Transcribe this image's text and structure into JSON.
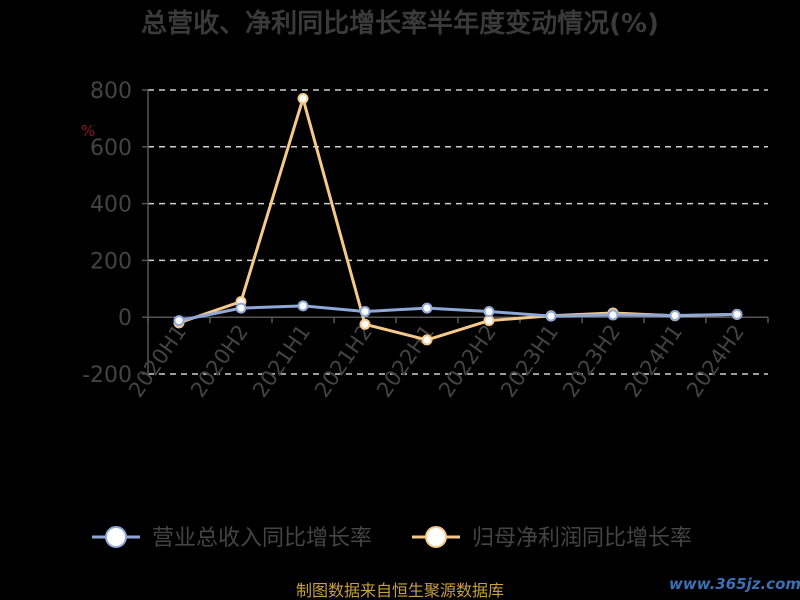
{
  "chart_data": {
    "type": "line",
    "title": "总营收、净利同比增长率半年度变动情况(%)",
    "ylabel": "%",
    "ylim": [
      -200,
      800
    ],
    "yticks": [
      800,
      600,
      400,
      200,
      0,
      -200
    ],
    "categories": [
      "2020H1",
      "2020H2",
      "2021H1",
      "2021H2",
      "2022H1",
      "2022H2",
      "2023H1",
      "2023H2",
      "2024H1",
      "2024H2"
    ],
    "series": [
      {
        "name": "营业总收入同比增长率",
        "color": "#8fa8d8",
        "values": [
          -12,
          32,
          40,
          20,
          32,
          20,
          4,
          8,
          6,
          10
        ]
      },
      {
        "name": "归母净利润同比增长率",
        "color": "#f5c98a",
        "values": [
          -20,
          55,
          770,
          -25,
          -80,
          -12,
          5,
          15,
          5,
          10
        ]
      }
    ],
    "grid": true,
    "legend": "bottom"
  },
  "footer": {
    "source": "制图数据来自恒生聚源数据库",
    "watermark": "www.365jz.com"
  },
  "colors": {
    "grid": "#d0d0d0",
    "axis": "#555555",
    "text": "#444444"
  }
}
